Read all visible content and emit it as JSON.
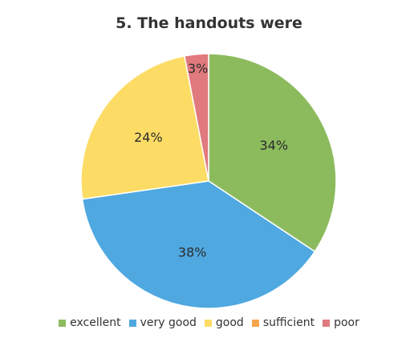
{
  "chart_data": {
    "type": "pie",
    "title": "5. The handouts were",
    "categories": [
      "excellent",
      "very good",
      "good",
      "sufficient",
      "poor"
    ],
    "values": [
      34,
      38,
      24,
      0,
      3
    ],
    "labels": [
      "34%",
      "38%",
      "24%",
      "",
      "3%"
    ],
    "colors": [
      "#8cbb5e",
      "#4fa8e0",
      "#fddc66",
      "#f5a64a",
      "#e07a7e"
    ],
    "legend_position": "bottom",
    "start_angle_deg": 0,
    "direction": "clockwise"
  }
}
